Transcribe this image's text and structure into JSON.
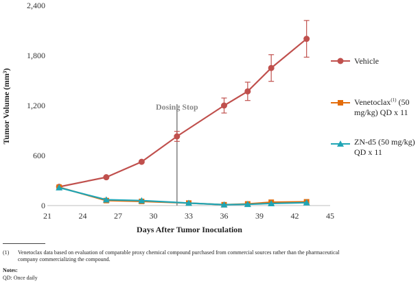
{
  "chart_data": {
    "type": "line",
    "xlabel": "Days After Tumor Inoculation",
    "ylabel": "Tumor Volume (mm³)",
    "xlim": [
      21,
      45
    ],
    "ylim": [
      0,
      2400
    ],
    "xticks": [
      21,
      24,
      27,
      30,
      33,
      36,
      39,
      42,
      45
    ],
    "yticks": [
      0,
      600,
      1200,
      1800,
      2400
    ],
    "ytick_labels": [
      "0",
      "600",
      "1,200",
      "1,800",
      "2,400"
    ],
    "annotation": {
      "label": "Dosing Stop",
      "x": 32
    },
    "series": [
      {
        "name": "Vehicle",
        "color": "#c0504d",
        "marker": "circle",
        "x": [
          22,
          26,
          29,
          32,
          36,
          38,
          40,
          43
        ],
        "y": [
          225,
          340,
          525,
          830,
          1200,
          1370,
          1650,
          2000
        ],
        "err": [
          0,
          0,
          0,
          60,
          90,
          110,
          160,
          220
        ]
      },
      {
        "name": "Venetoclax(1) (50 mg/kg) QD x 11",
        "color": "#e36c0a",
        "marker": "square",
        "x": [
          22,
          26,
          29,
          33,
          36,
          38,
          40,
          43
        ],
        "y": [
          220,
          60,
          50,
          30,
          10,
          20,
          40,
          45
        ],
        "err": [
          0,
          0,
          0,
          0,
          0,
          0,
          0,
          0
        ]
      },
      {
        "name": "ZN-d5 (50 mg/kg) QD x 11",
        "color": "#1fa5b5",
        "marker": "triangle",
        "x": [
          22,
          26,
          29,
          33,
          36,
          38,
          40,
          43
        ],
        "y": [
          215,
          70,
          60,
          30,
          10,
          15,
          25,
          35
        ],
        "err": [
          0,
          0,
          0,
          0,
          0,
          0,
          0,
          0
        ]
      }
    ]
  },
  "legend": {
    "vehicle": "Vehicle",
    "venetoclax_line1_main": "Venetoclax",
    "venetoclax_sup": "(1)",
    "venetoclax_line1_rest": " (50",
    "venetoclax_line2": "mg/kg) QD x 11",
    "znd5_line1": "ZN-d5 (50 mg/kg)",
    "znd5_line2": "QD x 11"
  },
  "footnotes": {
    "fn1_number": "(1)",
    "fn1_text": "Venetoclax data based on evaluation of comparable proxy chemical compound purchased from commercial sources rather than the pharmaceutical company commercializing the compound.",
    "notes_heading": "Notes:",
    "qd_text": "QD: Once daily"
  }
}
